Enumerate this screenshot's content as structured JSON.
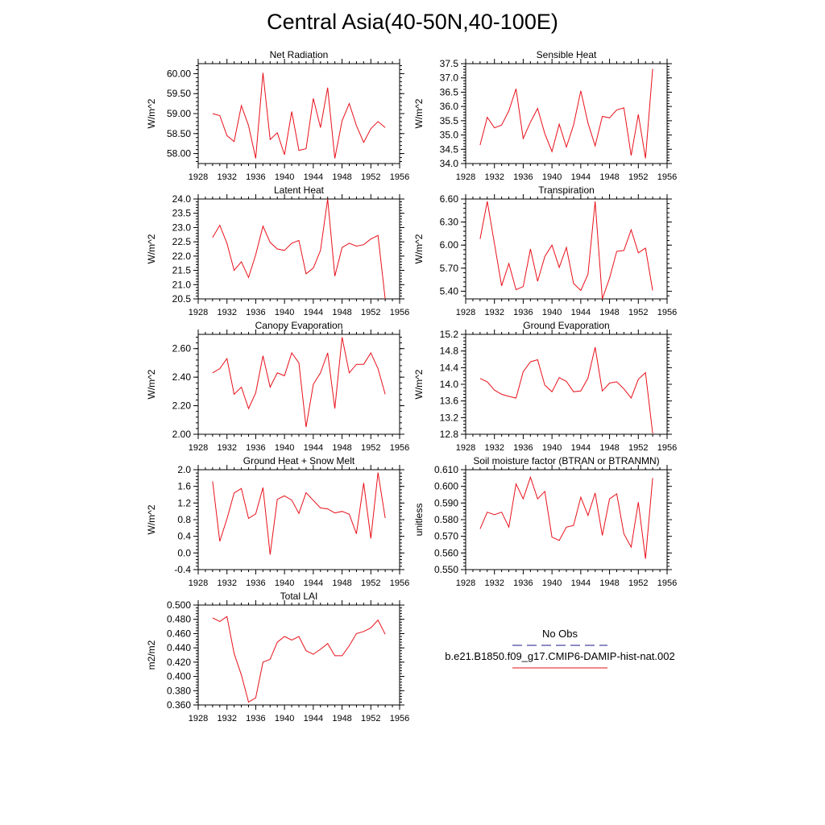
{
  "title": "Central Asia(40-50N,40-100E)",
  "x_tick_labels": [
    "1928",
    "1932",
    "1936",
    "1940",
    "1944",
    "1948",
    "1952",
    "1956"
  ],
  "legend": {
    "obs_label": "No Obs",
    "obs_color": "#1a1a8c",
    "model_label": "b.e21.B1850.f09_g17.CMIP6-DAMIP-hist-nat.002",
    "model_color": "#e8101a"
  },
  "chart_data": [
    {
      "type": "line",
      "title": "Net Radiation",
      "ylabel": "W/m^2",
      "xlim": [
        1928,
        1956
      ],
      "ylim": [
        57.75,
        60.25
      ],
      "yticks": [
        58.0,
        58.5,
        59.0,
        59.5,
        60.0
      ],
      "yticklabels": [
        "58.00",
        "58.50",
        "59.00",
        "59.50",
        "60.00"
      ],
      "x": [
        1930,
        1931,
        1932,
        1933,
        1934,
        1935,
        1936,
        1937,
        1938,
        1939,
        1940,
        1941,
        1942,
        1943,
        1944,
        1945,
        1946,
        1947,
        1948,
        1949,
        1950,
        1951,
        1952,
        1953,
        1954
      ],
      "series": [
        {
          "values": [
            59.0,
            58.95,
            58.45,
            58.3,
            59.2,
            58.7,
            57.88,
            60.02,
            58.35,
            58.52,
            57.97,
            59.05,
            58.08,
            58.12,
            59.38,
            58.65,
            59.65,
            57.88,
            58.82,
            59.25,
            58.7,
            58.28,
            58.62,
            58.8,
            58.65
          ]
        }
      ]
    },
    {
      "type": "line",
      "title": "Sensible Heat",
      "ylabel": "W/m^2",
      "xlim": [
        1928,
        1956
      ],
      "ylim": [
        34.0,
        37.5
      ],
      "yticks": [
        34.0,
        34.5,
        35.0,
        35.5,
        36.0,
        36.5,
        37.0,
        37.5
      ],
      "yticklabels": [
        "34.0",
        "34.5",
        "35.0",
        "35.5",
        "36.0",
        "36.5",
        "37.0",
        "37.5"
      ],
      "x": [
        1930,
        1931,
        1932,
        1933,
        1934,
        1935,
        1936,
        1937,
        1938,
        1939,
        1940,
        1941,
        1942,
        1943,
        1944,
        1945,
        1946,
        1947,
        1948,
        1949,
        1950,
        1951,
        1952,
        1953,
        1954
      ],
      "series": [
        {
          "values": [
            34.65,
            35.62,
            35.25,
            35.35,
            35.85,
            36.62,
            34.88,
            35.45,
            35.93,
            35.05,
            34.42,
            35.38,
            34.58,
            35.35,
            36.55,
            35.42,
            34.62,
            35.65,
            35.6,
            35.88,
            35.95,
            34.28,
            35.72,
            34.18,
            37.32
          ]
        }
      ]
    },
    {
      "type": "line",
      "title": "Latent Heat",
      "ylabel": "W/m^2",
      "xlim": [
        1928,
        1956
      ],
      "ylim": [
        20.5,
        24.0
      ],
      "yticks": [
        20.5,
        21.0,
        21.5,
        22.0,
        22.5,
        23.0,
        23.5,
        24.0
      ],
      "yticklabels": [
        "20.5",
        "21.0",
        "21.5",
        "22.0",
        "22.5",
        "23.0",
        "23.5",
        "24.0"
      ],
      "x": [
        1930,
        1931,
        1932,
        1933,
        1934,
        1935,
        1936,
        1937,
        1938,
        1939,
        1940,
        1941,
        1942,
        1943,
        1944,
        1945,
        1946,
        1947,
        1948,
        1949,
        1950,
        1951,
        1952,
        1953,
        1954
      ],
      "series": [
        {
          "values": [
            22.65,
            23.08,
            22.45,
            21.5,
            21.8,
            21.25,
            22.05,
            23.05,
            22.48,
            22.25,
            22.2,
            22.45,
            22.55,
            21.38,
            21.58,
            22.2,
            24.05,
            21.3,
            22.3,
            22.45,
            22.35,
            22.4,
            22.6,
            22.72,
            20.5
          ]
        }
      ]
    },
    {
      "type": "line",
      "title": "Transpiration",
      "ylabel": "W/m^2",
      "xlim": [
        1928,
        1956
      ],
      "ylim": [
        5.3,
        6.6
      ],
      "yticks": [
        5.4,
        5.7,
        6.0,
        6.3,
        6.6
      ],
      "yticklabels": [
        "5.40",
        "5.70",
        "6.00",
        "6.30",
        "6.60"
      ],
      "x": [
        1930,
        1931,
        1932,
        1933,
        1934,
        1935,
        1936,
        1937,
        1938,
        1939,
        1940,
        1941,
        1942,
        1943,
        1944,
        1945,
        1946,
        1947,
        1948,
        1949,
        1950,
        1951,
        1952,
        1953,
        1954
      ],
      "series": [
        {
          "values": [
            6.08,
            6.57,
            6.02,
            5.47,
            5.76,
            5.42,
            5.46,
            5.95,
            5.53,
            5.85,
            6.0,
            5.71,
            5.97,
            5.5,
            5.41,
            5.62,
            6.57,
            5.3,
            5.57,
            5.92,
            5.93,
            6.2,
            5.9,
            5.96,
            5.41
          ]
        }
      ]
    },
    {
      "type": "line",
      "title": "Canopy Evaporation",
      "ylabel": "W/m^2",
      "xlim": [
        1928,
        1956
      ],
      "ylim": [
        2.0,
        2.7
      ],
      "yticks": [
        2.0,
        2.2,
        2.4,
        2.6
      ],
      "yticklabels": [
        "2.00",
        "2.20",
        "2.40",
        "2.60"
      ],
      "x": [
        1930,
        1931,
        1932,
        1933,
        1934,
        1935,
        1936,
        1937,
        1938,
        1939,
        1940,
        1941,
        1942,
        1943,
        1944,
        1945,
        1946,
        1947,
        1948,
        1949,
        1950,
        1951,
        1952,
        1953,
        1954
      ],
      "series": [
        {
          "values": [
            2.43,
            2.46,
            2.53,
            2.28,
            2.33,
            2.18,
            2.29,
            2.55,
            2.33,
            2.43,
            2.41,
            2.57,
            2.5,
            2.05,
            2.35,
            2.43,
            2.57,
            2.18,
            2.68,
            2.43,
            2.49,
            2.49,
            2.57,
            2.46,
            2.28
          ]
        }
      ]
    },
    {
      "type": "line",
      "title": "Ground Evaporation",
      "ylabel": "W/m^2",
      "xlim": [
        1928,
        1956
      ],
      "ylim": [
        12.8,
        15.2
      ],
      "yticks": [
        12.8,
        13.2,
        13.6,
        14.0,
        14.4,
        14.8,
        15.2
      ],
      "yticklabels": [
        "12.8",
        "13.2",
        "13.6",
        "14.0",
        "14.4",
        "14.8",
        "15.2"
      ],
      "x": [
        1930,
        1931,
        1932,
        1933,
        1934,
        1935,
        1936,
        1937,
        1938,
        1939,
        1940,
        1941,
        1942,
        1943,
        1944,
        1945,
        1946,
        1947,
        1948,
        1949,
        1950,
        1951,
        1952,
        1953,
        1954
      ],
      "series": [
        {
          "values": [
            14.14,
            14.06,
            13.86,
            13.76,
            13.71,
            13.67,
            14.3,
            14.54,
            14.59,
            13.98,
            13.82,
            14.16,
            14.07,
            13.82,
            13.84,
            14.15,
            14.89,
            13.84,
            14.03,
            14.06,
            13.89,
            13.67,
            14.12,
            14.28,
            12.82
          ]
        }
      ]
    },
    {
      "type": "line",
      "title": "Ground Heat + Snow Melt",
      "ylabel": "W/m^2",
      "xlim": [
        1928,
        1956
      ],
      "ylim": [
        -0.4,
        2.0
      ],
      "yticks": [
        -0.4,
        0.0,
        0.4,
        0.8,
        1.2,
        1.6,
        2.0
      ],
      "yticklabels": [
        "-0.4",
        "0.0",
        "0.4",
        "0.8",
        "1.2",
        "1.6",
        "2.0"
      ],
      "x": [
        1930,
        1931,
        1932,
        1933,
        1934,
        1935,
        1936,
        1937,
        1938,
        1939,
        1940,
        1941,
        1942,
        1943,
        1944,
        1945,
        1946,
        1947,
        1948,
        1949,
        1950,
        1951,
        1952,
        1953,
        1954
      ],
      "series": [
        {
          "values": [
            1.72,
            0.28,
            0.82,
            1.44,
            1.55,
            0.83,
            0.94,
            1.57,
            -0.04,
            1.29,
            1.37,
            1.27,
            0.95,
            1.45,
            1.26,
            1.08,
            1.06,
            0.96,
            1.0,
            0.93,
            0.46,
            1.68,
            0.35,
            1.93,
            0.84
          ]
        }
      ]
    },
    {
      "type": "line",
      "title": "Soil moisture factor (BTRAN or BTRANMN)",
      "ylabel": "unitless",
      "xlim": [
        1928,
        1956
      ],
      "ylim": [
        0.55,
        0.61
      ],
      "yticks": [
        0.55,
        0.56,
        0.57,
        0.58,
        0.59,
        0.6,
        0.61
      ],
      "yticklabels": [
        "0.550",
        "0.560",
        "0.570",
        "0.580",
        "0.590",
        "0.600",
        "0.610"
      ],
      "x": [
        1930,
        1931,
        1932,
        1933,
        1934,
        1935,
        1936,
        1937,
        1938,
        1939,
        1940,
        1941,
        1942,
        1943,
        1944,
        1945,
        1946,
        1947,
        1948,
        1949,
        1950,
        1951,
        1952,
        1953,
        1954
      ],
      "series": [
        {
          "values": [
            0.5745,
            0.5845,
            0.583,
            0.5845,
            0.5755,
            0.6015,
            0.5925,
            0.6055,
            0.5925,
            0.597,
            0.5695,
            0.5675,
            0.5755,
            0.5765,
            0.5935,
            0.5825,
            0.596,
            0.5705,
            0.5925,
            0.5955,
            0.5715,
            0.5635,
            0.5905,
            0.5565,
            0.605
          ]
        }
      ]
    },
    {
      "type": "line",
      "title": "Total LAI",
      "ylabel": "m2/m2",
      "xlim": [
        1928,
        1956
      ],
      "ylim": [
        0.36,
        0.5
      ],
      "yticks": [
        0.36,
        0.38,
        0.4,
        0.42,
        0.44,
        0.46,
        0.48,
        0.5
      ],
      "yticklabels": [
        "0.360",
        "0.380",
        "0.400",
        "0.420",
        "0.440",
        "0.460",
        "0.480",
        "0.500"
      ],
      "x": [
        1930,
        1931,
        1932,
        1933,
        1934,
        1935,
        1936,
        1937,
        1938,
        1939,
        1940,
        1941,
        1942,
        1943,
        1944,
        1945,
        1946,
        1947,
        1948,
        1949,
        1950,
        1951,
        1952,
        1953,
        1954
      ],
      "series": [
        {
          "values": [
            0.482,
            0.477,
            0.484,
            0.432,
            0.402,
            0.364,
            0.37,
            0.42,
            0.424,
            0.448,
            0.456,
            0.451,
            0.456,
            0.436,
            0.431,
            0.438,
            0.446,
            0.429,
            0.429,
            0.443,
            0.46,
            0.463,
            0.468,
            0.479,
            0.459
          ]
        }
      ]
    }
  ]
}
